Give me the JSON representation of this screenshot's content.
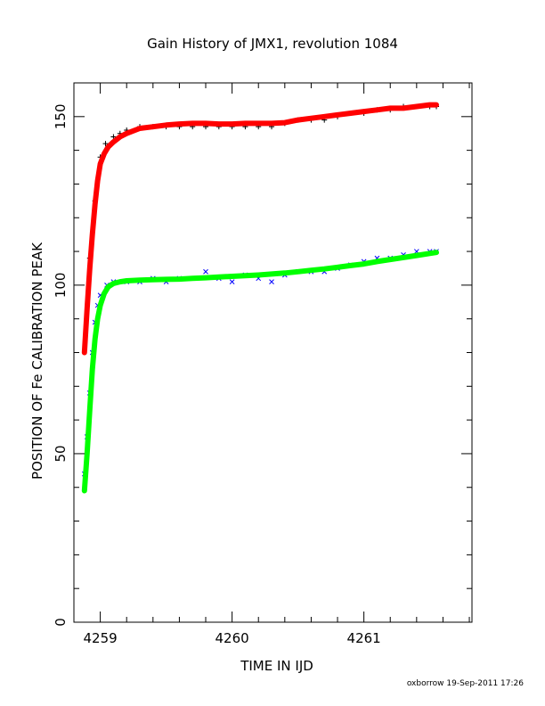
{
  "chart_data": {
    "type": "scatter",
    "title": "Gain History of JMX1, revolution 1084",
    "xlabel": "TIME IN IJD",
    "ylabel": "POSITION OF Fe CALIBRATION PEAK",
    "xlim": [
      4258.8,
      4261.82
    ],
    "ylim": [
      0,
      160
    ],
    "xticks": [
      4259,
      4260,
      4261
    ],
    "yticks": [
      0,
      50,
      100,
      150
    ],
    "grid": false,
    "legend": "none",
    "series": [
      {
        "marker": "+",
        "color": "#000000",
        "x": [
          4258.92,
          4258.96,
          4259.0,
          4259.04,
          4259.1,
          4259.15,
          4259.2,
          4259.3,
          4259.4,
          4259.5,
          4259.6,
          4259.7,
          4259.8,
          4259.9,
          4260.0,
          4260.1,
          4260.2,
          4260.3,
          4260.4,
          4260.5,
          4260.6,
          4260.7,
          4260.8,
          4260.9,
          4261.0,
          4261.1,
          4261.2,
          4261.3,
          4261.4,
          4261.5,
          4261.55
        ],
        "y": [
          108,
          125,
          138,
          142,
          144,
          145,
          146,
          147,
          147,
          147,
          147,
          147,
          147,
          147,
          147,
          147,
          147,
          147,
          148,
          149,
          149,
          149,
          150,
          151,
          151,
          152,
          152,
          153,
          153,
          153,
          153
        ]
      },
      {
        "name": "",
        "marker": "line",
        "color": "#ff0000",
        "x": [
          4258.88,
          4258.9,
          4258.92,
          4258.94,
          4258.96,
          4258.98,
          4259.0,
          4259.03,
          4259.06,
          4259.1,
          4259.15,
          4259.2,
          4259.3,
          4259.4,
          4259.5,
          4259.6,
          4259.7,
          4259.8,
          4259.9,
          4260.0,
          4260.1,
          4260.2,
          4260.3,
          4260.4,
          4260.5,
          4260.6,
          4260.7,
          4260.8,
          4260.9,
          4261.0,
          4261.1,
          4261.2,
          4261.3,
          4261.4,
          4261.5,
          4261.55
        ],
        "y": [
          80,
          93,
          105,
          115,
          124,
          131,
          136,
          139,
          141,
          142.5,
          144,
          145,
          146.5,
          147,
          147.5,
          147.8,
          148,
          148,
          147.8,
          147.8,
          148,
          148,
          148,
          148.2,
          149,
          149.5,
          150,
          150.5,
          151,
          151.5,
          152,
          152.5,
          152.5,
          153,
          153.5,
          153.5
        ]
      },
      {
        "marker": "x",
        "color": "#0000ff",
        "x": [
          4258.88,
          4258.9,
          4258.92,
          4258.94,
          4258.96,
          4258.98,
          4259.0,
          4259.05,
          4259.1,
          4259.2,
          4259.3,
          4259.4,
          4259.5,
          4259.6,
          4259.7,
          4259.8,
          4259.9,
          4260.0,
          4260.1,
          4260.2,
          4260.3,
          4260.4,
          4260.5,
          4260.6,
          4260.7,
          4260.8,
          4260.9,
          4261.0,
          4261.1,
          4261.2,
          4261.3,
          4261.4,
          4261.5,
          4261.55
        ],
        "y": [
          44,
          55,
          68,
          80,
          89,
          94,
          97,
          100,
          101,
          101,
          101,
          102,
          101,
          102,
          102,
          104,
          102,
          101,
          103,
          102,
          101,
          103,
          104,
          104,
          104,
          105,
          106,
          107,
          108,
          108,
          109,
          110,
          110,
          110
        ]
      },
      {
        "name": "",
        "marker": "line",
        "color": "#00ff00",
        "x": [
          4258.88,
          4258.9,
          4258.92,
          4258.94,
          4258.96,
          4258.98,
          4259.0,
          4259.03,
          4259.06,
          4259.1,
          4259.15,
          4259.2,
          4259.3,
          4259.4,
          4259.5,
          4259.6,
          4259.7,
          4259.8,
          4259.9,
          4260.0,
          4260.1,
          4260.2,
          4260.3,
          4260.4,
          4260.5,
          4260.6,
          4260.7,
          4260.8,
          4260.9,
          4261.0,
          4261.1,
          4261.2,
          4261.3,
          4261.4,
          4261.5,
          4261.55
        ],
        "y": [
          39,
          50,
          63,
          75,
          84,
          90,
          94,
          97.5,
          99.5,
          100.5,
          101,
          101.3,
          101.5,
          101.6,
          101.7,
          101.8,
          102,
          102.2,
          102.4,
          102.6,
          102.8,
          103,
          103.3,
          103.6,
          104,
          104.4,
          104.8,
          105.3,
          105.8,
          106.3,
          107,
          107.6,
          108.2,
          108.8,
          109.4,
          109.7
        ]
      }
    ]
  },
  "footer": {
    "credit": "oxborrow 19-Sep-2011 17:26"
  }
}
